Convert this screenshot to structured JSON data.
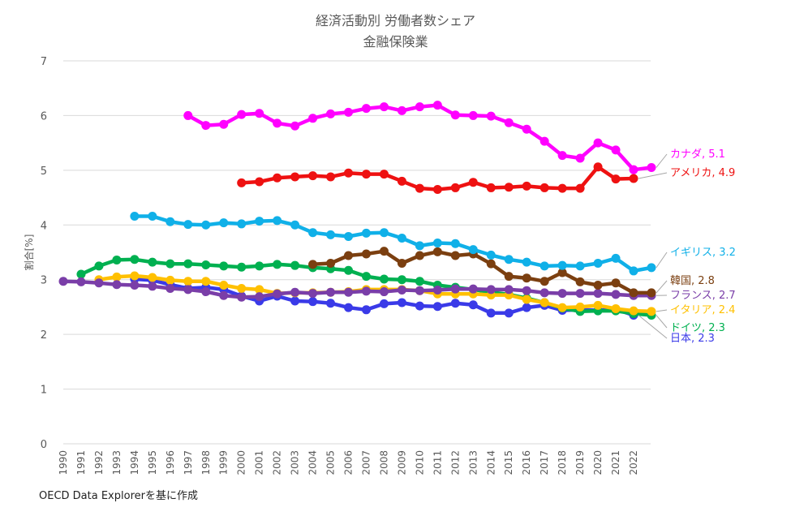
{
  "chart_data": {
    "type": "line",
    "title": "経済活動別 労働者数シェア",
    "subtitle": "金融保険業",
    "xlabel": "",
    "ylabel": "割合[%]",
    "ylim": [
      0,
      7
    ],
    "yticks": [
      0,
      1,
      2,
      3,
      4,
      5,
      6,
      7
    ],
    "x": [
      1990,
      1991,
      1992,
      1993,
      1994,
      1995,
      1996,
      1997,
      1998,
      1999,
      2000,
      2001,
      2002,
      2003,
      2004,
      2005,
      2006,
      2007,
      2008,
      2009,
      2010,
      2011,
      2012,
      2013,
      2014,
      2015,
      2016,
      2017,
      2018,
      2019,
      2020,
      2021,
      2022,
      2023
    ],
    "xtick_labels": [
      "1990",
      "1991",
      "1992",
      "1993",
      "1994",
      "1995",
      "1996",
      "1997",
      "1998",
      "1999",
      "2000",
      "2001",
      "2002",
      "2003",
      "2004",
      "2005",
      "2006",
      "2007",
      "2008",
      "2009",
      "2010",
      "2011",
      "2012",
      "2013",
      "2014",
      "2015",
      "2016",
      "2017",
      "2018",
      "2019",
      "2020",
      "2021",
      "2022"
    ],
    "grid": true,
    "legend": "end-of-line labels",
    "series": [
      {
        "name": "カナダ",
        "label": "カナダ, 5.1",
        "color": "#ff00ff",
        "values": [
          null,
          null,
          null,
          null,
          null,
          null,
          null,
          6.0,
          5.82,
          5.84,
          6.02,
          6.04,
          5.86,
          5.81,
          5.95,
          6.03,
          6.06,
          6.13,
          6.16,
          6.09,
          6.16,
          6.19,
          6.01,
          6.0,
          5.99,
          5.87,
          5.75,
          5.53,
          5.27,
          5.22,
          5.5,
          5.37,
          5.01,
          5.05
        ]
      },
      {
        "name": "アメリカ",
        "label": "アメリカ, 4.9",
        "color": "#ee1111",
        "values": [
          null,
          null,
          null,
          null,
          null,
          null,
          null,
          null,
          null,
          null,
          4.77,
          4.79,
          4.86,
          4.88,
          4.9,
          4.88,
          4.95,
          4.93,
          4.93,
          4.8,
          4.67,
          4.65,
          4.68,
          4.78,
          4.68,
          4.69,
          4.71,
          4.68,
          4.67,
          4.67,
          5.06,
          4.84,
          4.85,
          null
        ]
      },
      {
        "name": "イギリス",
        "label": "イギリス, 3.2",
        "color": "#10b0e8",
        "values": [
          null,
          null,
          null,
          null,
          4.16,
          4.16,
          4.06,
          4.01,
          4.0,
          4.04,
          4.02,
          4.07,
          4.08,
          4.0,
          3.86,
          3.82,
          3.79,
          3.85,
          3.86,
          3.76,
          3.62,
          3.67,
          3.66,
          3.55,
          3.45,
          3.37,
          3.32,
          3.25,
          3.26,
          3.25,
          3.3,
          3.39,
          3.16,
          3.22
        ]
      },
      {
        "name": "韓国",
        "label": "韓国, 2.8",
        "color": "#7b3f10",
        "values": [
          null,
          null,
          null,
          null,
          null,
          null,
          null,
          null,
          null,
          null,
          null,
          null,
          null,
          null,
          3.28,
          3.3,
          3.44,
          3.47,
          3.52,
          3.3,
          3.44,
          3.51,
          3.44,
          3.47,
          3.29,
          3.06,
          3.03,
          2.97,
          3.13,
          2.96,
          2.9,
          2.94,
          2.76,
          2.76
        ]
      },
      {
        "name": "フランス",
        "label": "フランス, 2.7",
        "color": "#7a3ea8",
        "values": [
          2.97,
          2.96,
          2.94,
          2.91,
          2.9,
          2.88,
          2.84,
          2.82,
          2.78,
          2.71,
          2.68,
          2.69,
          2.74,
          2.77,
          2.75,
          2.77,
          2.77,
          2.79,
          2.78,
          2.81,
          2.8,
          2.81,
          2.83,
          2.83,
          2.82,
          2.82,
          2.8,
          2.76,
          2.75,
          2.75,
          2.75,
          2.73,
          2.71,
          2.71
        ]
      },
      {
        "name": "イタリア",
        "label": "イタリア, 2.4",
        "color": "#ffc000",
        "values": [
          null,
          null,
          3.0,
          3.05,
          3.07,
          3.04,
          2.99,
          2.97,
          2.97,
          2.9,
          2.84,
          2.82,
          2.75,
          2.76,
          2.76,
          2.77,
          2.78,
          2.82,
          2.82,
          2.82,
          2.8,
          2.74,
          2.74,
          2.74,
          2.72,
          2.72,
          2.64,
          2.58,
          2.49,
          2.5,
          2.53,
          2.47,
          2.43,
          2.42
        ]
      },
      {
        "name": "ドイツ",
        "label": "ドイツ, 2.3",
        "color": "#00b050",
        "values": [
          null,
          3.1,
          3.25,
          3.36,
          3.37,
          3.32,
          3.29,
          3.29,
          3.27,
          3.25,
          3.23,
          3.25,
          3.28,
          3.26,
          3.22,
          3.2,
          3.17,
          3.06,
          3.01,
          3.0,
          2.97,
          2.9,
          2.86,
          2.82,
          2.77,
          2.73,
          2.66,
          2.58,
          2.48,
          2.42,
          2.43,
          2.43,
          2.38,
          2.35
        ]
      },
      {
        "name": "日本",
        "label": "日本, 2.3",
        "color": "#3a3ae8",
        "values": [
          null,
          null,
          null,
          null,
          3.01,
          2.99,
          2.91,
          2.84,
          2.86,
          2.82,
          2.7,
          2.61,
          2.7,
          2.61,
          2.6,
          2.57,
          2.49,
          2.45,
          2.56,
          2.58,
          2.52,
          2.51,
          2.57,
          2.54,
          2.39,
          2.39,
          2.49,
          2.53,
          2.44,
          2.45,
          2.44,
          2.46,
          2.35,
          null
        ]
      }
    ]
  },
  "source_note": "OECD Data Explorerを基に作成"
}
